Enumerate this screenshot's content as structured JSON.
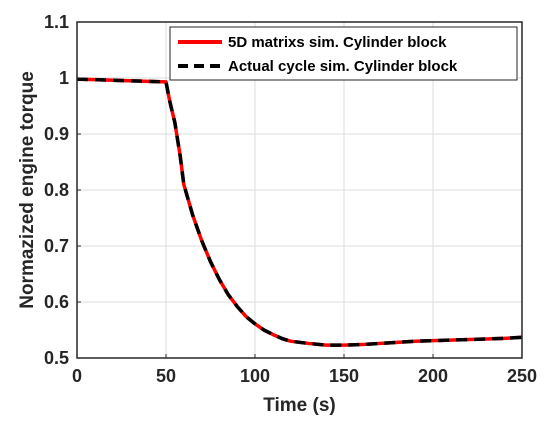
{
  "chart_data": {
    "type": "line",
    "xlabel": "Time (s)",
    "ylabel": "Normazized engine torque",
    "xlim": [
      0,
      250
    ],
    "ylim": [
      0.5,
      1.1
    ],
    "xticks": [
      0,
      50,
      100,
      150,
      200,
      250
    ],
    "yticks": [
      0.5,
      0.6,
      0.7,
      0.8,
      0.9,
      1,
      1.1
    ],
    "xtick_labels": [
      "0",
      "50",
      "100",
      "150",
      "200",
      "250"
    ],
    "ytick_labels": [
      "0.5",
      "0.6",
      "0.7",
      "0.8",
      "0.9",
      "1",
      "1.1"
    ],
    "grid": true,
    "legend_position": "top-right",
    "series": [
      {
        "name": "5D matrixs sim. Cylinder block",
        "color": "#ff0000",
        "style": "solid",
        "x": [
          0,
          10,
          20,
          30,
          40,
          50,
          52,
          55,
          58,
          60,
          65,
          70,
          75,
          80,
          85,
          90,
          95,
          100,
          105,
          110,
          115,
          120,
          130,
          140,
          150,
          160,
          170,
          180,
          190,
          200,
          210,
          220,
          230,
          240,
          250
        ],
        "y": [
          0.998,
          0.997,
          0.996,
          0.995,
          0.994,
          0.993,
          0.96,
          0.92,
          0.86,
          0.81,
          0.755,
          0.71,
          0.672,
          0.64,
          0.613,
          0.592,
          0.574,
          0.561,
          0.55,
          0.542,
          0.535,
          0.53,
          0.526,
          0.523,
          0.523,
          0.524,
          0.526,
          0.528,
          0.53,
          0.531,
          0.532,
          0.533,
          0.534,
          0.535,
          0.537
        ]
      },
      {
        "name": "Actual cycle sim. Cylinder block",
        "color": "#000000",
        "style": "dashed",
        "x": [
          0,
          10,
          20,
          30,
          40,
          50,
          52,
          55,
          58,
          60,
          65,
          70,
          75,
          80,
          85,
          90,
          95,
          100,
          105,
          110,
          115,
          120,
          130,
          140,
          150,
          160,
          170,
          180,
          190,
          200,
          210,
          220,
          230,
          240,
          250
        ],
        "y": [
          0.998,
          0.997,
          0.996,
          0.995,
          0.994,
          0.993,
          0.96,
          0.92,
          0.86,
          0.81,
          0.755,
          0.71,
          0.672,
          0.64,
          0.613,
          0.592,
          0.574,
          0.561,
          0.55,
          0.542,
          0.535,
          0.53,
          0.526,
          0.523,
          0.523,
          0.524,
          0.526,
          0.528,
          0.53,
          0.531,
          0.532,
          0.533,
          0.534,
          0.535,
          0.537
        ]
      }
    ]
  }
}
